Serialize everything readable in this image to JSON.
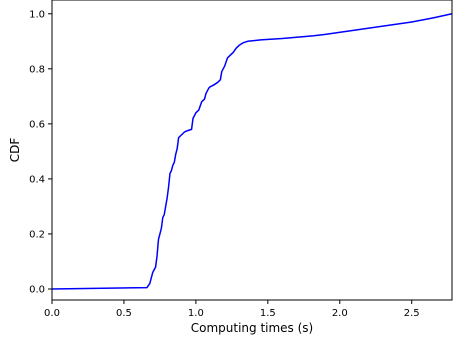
{
  "chart_data": {
    "type": "line",
    "title": "",
    "xlabel": "Computing times (s)",
    "ylabel": "CDF",
    "xlim": [
      0.0,
      2.78
    ],
    "ylim": [
      -0.04,
      1.05
    ],
    "xticks": [
      0.0,
      0.5,
      1.0,
      1.5,
      2.0,
      2.5
    ],
    "xtick_labels": [
      "0.0",
      "0.5",
      "1.0",
      "1.5",
      "2.0",
      "2.5"
    ],
    "yticks": [
      0.0,
      0.2,
      0.4,
      0.6,
      0.8,
      1.0
    ],
    "ytick_labels": [
      "0.0",
      "0.2",
      "0.4",
      "0.6",
      "0.8",
      "1.0"
    ],
    "grid": false,
    "series": [
      {
        "color": "#0000ff",
        "x": [
          0.0,
          0.66,
          0.68,
          0.7,
          0.72,
          0.73,
          0.74,
          0.76,
          0.77,
          0.78,
          0.8,
          0.81,
          0.82,
          0.83,
          0.84,
          0.85,
          0.86,
          0.87,
          0.88,
          0.89,
          0.9,
          0.92,
          0.94,
          0.97,
          0.98,
          0.99,
          1.0,
          1.02,
          1.04,
          1.06,
          1.07,
          1.09,
          1.1,
          1.12,
          1.15,
          1.17,
          1.18,
          1.2,
          1.22,
          1.24,
          1.26,
          1.28,
          1.3,
          1.33,
          1.36,
          1.45,
          1.6,
          1.82,
          1.9,
          2.1,
          2.3,
          2.5,
          2.65,
          2.78
        ],
        "y": [
          0.0,
          0.005,
          0.02,
          0.06,
          0.08,
          0.12,
          0.18,
          0.22,
          0.26,
          0.27,
          0.33,
          0.37,
          0.42,
          0.43,
          0.45,
          0.46,
          0.49,
          0.51,
          0.55,
          0.555,
          0.56,
          0.57,
          0.575,
          0.58,
          0.62,
          0.63,
          0.64,
          0.65,
          0.68,
          0.69,
          0.71,
          0.73,
          0.735,
          0.74,
          0.75,
          0.76,
          0.79,
          0.81,
          0.84,
          0.85,
          0.86,
          0.875,
          0.885,
          0.895,
          0.9,
          0.905,
          0.91,
          0.92,
          0.925,
          0.94,
          0.955,
          0.97,
          0.985,
          1.0
        ]
      }
    ]
  }
}
